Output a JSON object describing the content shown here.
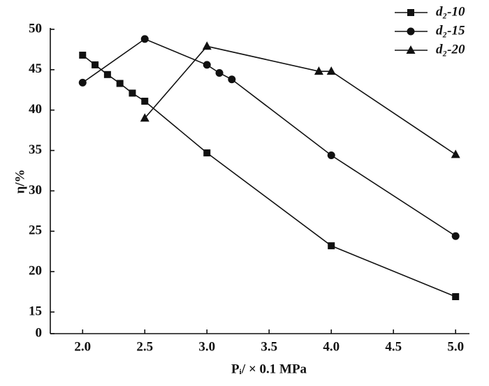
{
  "chart_data": {
    "type": "line",
    "x_label": "Pᵢ/ × 0.1 MPa",
    "y_label": "η/%",
    "xlim": [
      1.74,
      5.1
    ],
    "xticks": [
      {
        "value": 2,
        "label": "2.0"
      },
      {
        "value": 2.5,
        "label": "2.5"
      },
      {
        "value": 3,
        "label": "3.0"
      },
      {
        "value": 3.5,
        "label": "3.5"
      },
      {
        "value": 4,
        "label": "4.0"
      },
      {
        "value": 4.5,
        "label": "4.5"
      },
      {
        "value": 5,
        "label": "5.0"
      }
    ],
    "ylim": [
      0,
      50
    ],
    "y_break": [
      0,
      15
    ],
    "yticks": [
      0,
      15,
      20,
      25,
      30,
      35,
      40,
      45,
      50
    ],
    "legend": "upper right",
    "series": [
      {
        "name": "d₂-10",
        "color": "#111111",
        "marker": "square",
        "x": [
          2.0,
          2.1,
          2.2,
          2.3,
          2.4,
          2.5,
          3.0,
          4.0,
          5.0
        ],
        "values": [
          46.8,
          45.6,
          44.4,
          43.3,
          42.1,
          41.1,
          34.7,
          23.2,
          16.9
        ]
      },
      {
        "name": "d₂-15",
        "color": "#111111",
        "marker": "circle",
        "x": [
          2.0,
          2.5,
          3.0,
          3.1,
          3.2,
          4.0,
          5.0
        ],
        "values": [
          43.4,
          48.8,
          45.6,
          44.6,
          43.8,
          34.4,
          24.4
        ]
      },
      {
        "name": "d₂-20",
        "color": "#111111",
        "marker": "triangle",
        "x": [
          2.5,
          3.0,
          3.9,
          4.0,
          5.0
        ],
        "values": [
          39.0,
          47.9,
          44.8,
          44.8,
          34.5
        ]
      }
    ]
  }
}
